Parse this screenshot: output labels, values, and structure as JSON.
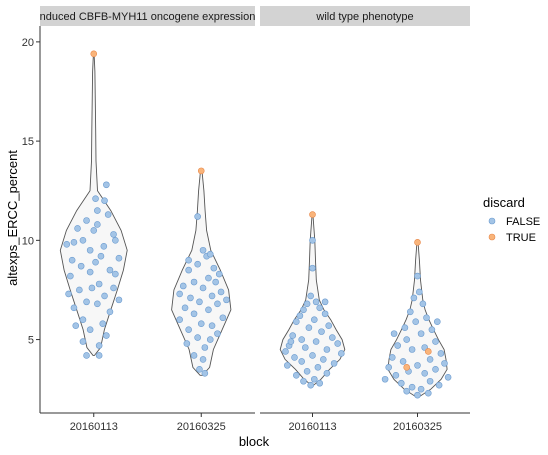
{
  "chart_data": {
    "type": "violin",
    "xlabel": "block",
    "ylabel": "altexps_ERCC_percent",
    "ylim": [
      1.3,
      20.8
    ],
    "yticks": [
      5,
      10,
      15,
      20
    ],
    "grid": false,
    "legend": {
      "title": "discard",
      "placement": "right",
      "items": [
        {
          "label": "FALSE",
          "color": "#a3c4e6"
        },
        {
          "label": "TRUE",
          "color": "#f9b47a"
        }
      ]
    },
    "colors": {
      "point_false_fill": "#a3c4e6",
      "point_false_stroke": "#6b9bcf",
      "point_true_fill": "#f9b47a",
      "point_true_stroke": "#e8884a",
      "violin_fill": "#f7f7f7",
      "violin_stroke": "#555555",
      "strip_fill": "#d3d3d3"
    },
    "panels": [
      {
        "strip": "nduced CBFB-MYH11 oncogene expression",
        "categories": [
          "20160113",
          "20160325"
        ],
        "violins": [
          {
            "category": "20160113",
            "profile": [
              [
                4.2,
                0.02
              ],
              [
                4.6,
                0.18
              ],
              [
                5.5,
                0.28
              ],
              [
                6.5,
                0.45
              ],
              [
                7.5,
                0.62
              ],
              [
                8.5,
                0.78
              ],
              [
                9.5,
                0.88
              ],
              [
                10.5,
                0.72
              ],
              [
                11.5,
                0.45
              ],
              [
                12.5,
                0.1
              ],
              [
                14,
                0.06
              ],
              [
                15.5,
                0.05
              ],
              [
                17,
                0.04
              ],
              [
                18.5,
                0.03
              ],
              [
                19.4,
                0.01
              ]
            ],
            "points": [
              [
                -0.55,
                9.9
              ],
              [
                -0.3,
                10.0
              ],
              [
                -0.45,
                10.6
              ],
              [
                -0.75,
                9.8
              ],
              [
                0.1,
                10.8
              ],
              [
                0.4,
                11.3
              ],
              [
                0.6,
                10.0
              ],
              [
                -0.1,
                9.5
              ],
              [
                0.2,
                9.2
              ],
              [
                -0.6,
                9.0
              ],
              [
                0.7,
                9.1
              ],
              [
                -0.2,
                11.0
              ],
              [
                0.05,
                12.1
              ],
              [
                0.3,
                12.0
              ],
              [
                -0.35,
                8.7
              ],
              [
                0.45,
                8.5
              ],
              [
                -0.65,
                8.2
              ],
              [
                0.6,
                8.3
              ],
              [
                -0.1,
                8.4
              ],
              [
                0.15,
                7.8
              ],
              [
                0.55,
                7.6
              ],
              [
                -0.4,
                7.5
              ],
              [
                -0.7,
                7.3
              ],
              [
                0.3,
                7.2
              ],
              [
                0.7,
                7.0
              ],
              [
                -0.2,
                6.9
              ],
              [
                0.1,
                6.8
              ],
              [
                -0.55,
                6.6
              ],
              [
                0.45,
                6.4
              ],
              [
                -0.3,
                6.0
              ],
              [
                0.25,
                5.8
              ],
              [
                -0.1,
                5.5
              ],
              [
                0.35,
                5.2
              ],
              [
                -0.3,
                4.9
              ],
              [
                0.15,
                4.7
              ],
              [
                -0.2,
                4.2
              ],
              [
                0.55,
                10.3
              ],
              [
                0.0,
                10.5
              ],
              [
                -0.05,
                7.6
              ],
              [
                -0.5,
                5.7
              ],
              [
                0.05,
                8.9
              ],
              [
                0.28,
                9.7
              ],
              [
                0.15,
                4.2
              ],
              [
                0.35,
                12.8
              ],
              [
                0.1,
                11.5
              ]
            ],
            "true_points": [
              [
                0.0,
                19.4
              ]
            ]
          },
          {
            "category": "20160325",
            "profile": [
              [
                3.2,
                0.03
              ],
              [
                3.6,
                0.22
              ],
              [
                4.5,
                0.32
              ],
              [
                5.5,
                0.55
              ],
              [
                6.5,
                0.78
              ],
              [
                7.5,
                0.72
              ],
              [
                8.5,
                0.5
              ],
              [
                9.5,
                0.25
              ],
              [
                10.5,
                0.14
              ],
              [
                11.5,
                0.1
              ],
              [
                12.5,
                0.07
              ],
              [
                13.5,
                0.02
              ]
            ],
            "points": [
              [
                -0.1,
                11.2
              ],
              [
                0.05,
                9.5
              ],
              [
                0.15,
                9.2
              ],
              [
                -0.1,
                8.8
              ],
              [
                0.35,
                8.6
              ],
              [
                -0.35,
                8.5
              ],
              [
                0.5,
                8.3
              ],
              [
                0.2,
                8.1
              ],
              [
                -0.2,
                7.9
              ],
              [
                -0.5,
                7.7
              ],
              [
                0.05,
                7.6
              ],
              [
                0.55,
                7.4
              ],
              [
                -0.6,
                7.3
              ],
              [
                0.3,
                7.2
              ],
              [
                -0.3,
                7.1
              ],
              [
                0.7,
                7.0
              ],
              [
                -0.05,
                6.9
              ],
              [
                0.45,
                6.8
              ],
              [
                -0.45,
                6.6
              ],
              [
                0.2,
                6.5
              ],
              [
                -0.2,
                6.3
              ],
              [
                0.6,
                6.1
              ],
              [
                -0.6,
                6.0
              ],
              [
                0.0,
                5.8
              ],
              [
                0.3,
                5.7
              ],
              [
                -0.35,
                5.5
              ],
              [
                0.45,
                5.3
              ],
              [
                -0.1,
                5.1
              ],
              [
                0.25,
                5.0
              ],
              [
                -0.4,
                4.8
              ],
              [
                0.1,
                4.6
              ],
              [
                -0.2,
                4.2
              ],
              [
                0.05,
                4.0
              ],
              [
                -0.05,
                3.5
              ],
              [
                0.1,
                3.3
              ],
              [
                0.25,
                9.3
              ],
              [
                -0.35,
                9.0
              ],
              [
                0.4,
                7.9
              ]
            ],
            "true_points": [
              [
                0.0,
                13.5
              ]
            ]
          }
        ]
      },
      {
        "strip": "wild type phenotype",
        "categories": [
          "20160113",
          "20160325"
        ],
        "violins": [
          {
            "category": "20160113",
            "profile": [
              [
                2.7,
                0.03
              ],
              [
                3.0,
                0.22
              ],
              [
                3.5,
                0.45
              ],
              [
                4.0,
                0.72
              ],
              [
                4.5,
                0.85
              ],
              [
                5.0,
                0.78
              ],
              [
                5.5,
                0.62
              ],
              [
                6.0,
                0.48
              ],
              [
                6.5,
                0.3
              ],
              [
                7.0,
                0.18
              ],
              [
                8.0,
                0.1
              ],
              [
                9.0,
                0.08
              ],
              [
                10.0,
                0.06
              ],
              [
                11.3,
                0.01
              ]
            ],
            "points": [
              [
                0.0,
                10.0
              ],
              [
                0.0,
                8.6
              ],
              [
                -0.05,
                7.2
              ],
              [
                0.1,
                6.9
              ],
              [
                -0.15,
                6.8
              ],
              [
                0.2,
                6.6
              ],
              [
                -0.25,
                6.5
              ],
              [
                0.35,
                6.3
              ],
              [
                -0.35,
                6.2
              ],
              [
                0.05,
                6.0
              ],
              [
                -0.45,
                5.9
              ],
              [
                0.45,
                5.7
              ],
              [
                -0.1,
                5.6
              ],
              [
                0.25,
                5.4
              ],
              [
                -0.55,
                5.2
              ],
              [
                0.55,
                5.1
              ],
              [
                -0.3,
                5.0
              ],
              [
                0.1,
                4.9
              ],
              [
                0.7,
                4.8
              ],
              [
                -0.65,
                4.7
              ],
              [
                -0.2,
                4.6
              ],
              [
                0.4,
                4.5
              ],
              [
                -0.75,
                4.4
              ],
              [
                0.8,
                4.3
              ],
              [
                0.0,
                4.2
              ],
              [
                -0.5,
                4.1
              ],
              [
                0.3,
                4.0
              ],
              [
                -0.3,
                3.9
              ],
              [
                0.6,
                3.8
              ],
              [
                -0.7,
                3.7
              ],
              [
                0.15,
                3.6
              ],
              [
                -0.15,
                3.4
              ],
              [
                0.4,
                3.3
              ],
              [
                -0.45,
                3.2
              ],
              [
                0.05,
                3.0
              ],
              [
                -0.25,
                2.9
              ],
              [
                0.2,
                2.8
              ],
              [
                -0.05,
                2.7
              ],
              [
                0.35,
                6.9
              ],
              [
                -0.6,
                4.9
              ]
            ],
            "true_points": [
              [
                0.0,
                11.3
              ]
            ]
          },
          {
            "category": "20160325",
            "profile": [
              [
                2.1,
                0.03
              ],
              [
                2.5,
                0.35
              ],
              [
                3.0,
                0.62
              ],
              [
                3.5,
                0.78
              ],
              [
                4.0,
                0.75
              ],
              [
                4.5,
                0.7
              ],
              [
                5.0,
                0.55
              ],
              [
                5.5,
                0.42
              ],
              [
                6.0,
                0.3
              ],
              [
                6.5,
                0.2
              ],
              [
                7.0,
                0.14
              ],
              [
                8.0,
                0.08
              ],
              [
                9.0,
                0.05
              ],
              [
                10.0,
                0.01
              ]
            ],
            "points": [
              [
                0.0,
                8.2
              ],
              [
                0.05,
                7.4
              ],
              [
                -0.1,
                7.1
              ],
              [
                0.15,
                6.8
              ],
              [
                -0.2,
                6.4
              ],
              [
                0.25,
                6.1
              ],
              [
                -0.05,
                5.9
              ],
              [
                -0.35,
                5.6
              ],
              [
                0.4,
                5.5
              ],
              [
                0.1,
                5.3
              ],
              [
                -0.3,
                5.0
              ],
              [
                0.5,
                4.9
              ],
              [
                -0.55,
                4.7
              ],
              [
                0.2,
                4.6
              ],
              [
                -0.15,
                4.5
              ],
              [
                0.65,
                4.3
              ],
              [
                -0.7,
                4.1
              ],
              [
                0.35,
                4.0
              ],
              [
                -0.4,
                3.9
              ],
              [
                0.75,
                3.8
              ],
              [
                0.0,
                3.7
              ],
              [
                -0.8,
                3.6
              ],
              [
                0.5,
                3.5
              ],
              [
                -0.25,
                3.4
              ],
              [
                0.2,
                3.3
              ],
              [
                -0.6,
                3.2
              ],
              [
                0.85,
                3.1
              ],
              [
                -0.9,
                3.0
              ],
              [
                0.35,
                2.9
              ],
              [
                -0.45,
                2.8
              ],
              [
                0.6,
                2.7
              ],
              [
                -0.15,
                2.6
              ],
              [
                0.1,
                2.5
              ],
              [
                -0.3,
                2.4
              ],
              [
                0.3,
                2.3
              ],
              [
                0.0,
                2.2
              ],
              [
                -0.65,
                5.3
              ],
              [
                0.55,
                5.9
              ]
            ],
            "true_points": [
              [
                0.0,
                9.9
              ],
              [
                0.3,
                4.4
              ],
              [
                -0.3,
                3.6
              ]
            ]
          }
        ]
      }
    ]
  }
}
